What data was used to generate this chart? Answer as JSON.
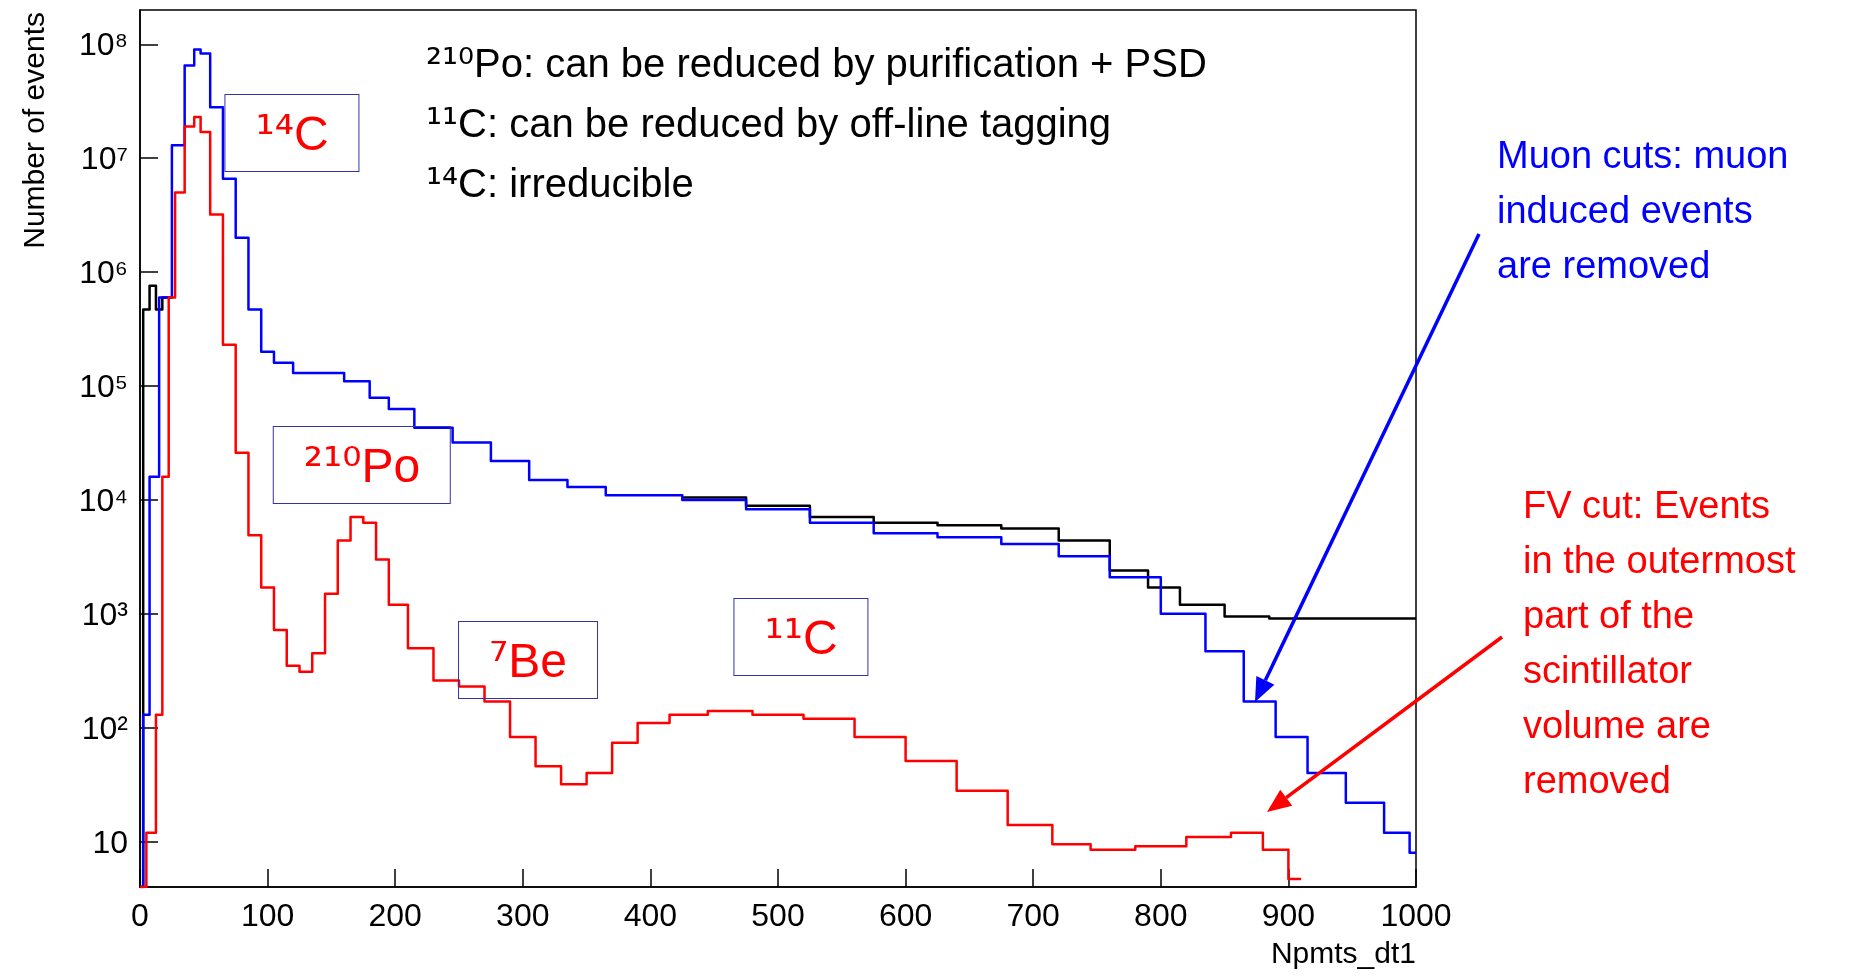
{
  "chart_data": {
    "type": "step",
    "xlabel": "Npmts_dt1",
    "ylabel": "Number of events",
    "xlim": [
      0,
      1000
    ],
    "xticks": [
      0,
      100,
      200,
      300,
      400,
      500,
      600,
      700,
      800,
      900,
      1000
    ],
    "ylim": [
      4,
      200000000
    ],
    "log": "y",
    "grid": false,
    "yticks": [
      10,
      {
        "value": 100,
        "label": "10²"
      },
      {
        "value": 1000,
        "label": "10³"
      },
      {
        "value": 10000,
        "label": "10⁴"
      },
      {
        "value": 100000,
        "label": "10⁵"
      },
      {
        "value": 1000000,
        "label": "10⁶"
      },
      {
        "value": 10000000,
        "label": "10⁷"
      },
      {
        "value": 100000000,
        "label": "10⁸"
      }
    ],
    "annotations": [
      "²¹⁰Po: can be reduced by purification + PSD",
      "¹¹C: can be reduced by off-line tagging",
      "¹⁴C: irreducible",
      "¹⁴C",
      "²¹⁰Po",
      "⁷Be",
      "¹¹C",
      "Muon cuts: muon induced events are removed",
      "FV cut: Events in the outermost part of the scintillator volume are removed"
    ],
    "series": [
      {
        "color": "#000000",
        "x": [
          0,
          5,
          10,
          15,
          20,
          30,
          40,
          45,
          50,
          60,
          70,
          80,
          90,
          100,
          110,
          130,
          150,
          170,
          190,
          200,
          230,
          260,
          290,
          320,
          350,
          380,
          400,
          450,
          500,
          550,
          600,
          650,
          700,
          740,
          780,
          800,
          830,
          870,
          900,
          950,
          1000
        ],
        "values": [
          4,
          470000,
          760000,
          470000,
          600000,
          null,
          null,
          null,
          null,
          null,
          null,
          null,
          null,
          null,
          null,
          null,
          null,
          null,
          null,
          null,
          null,
          null,
          null,
          null,
          null,
          null,
          null,
          10500,
          8900,
          7100,
          6300,
          6000,
          5600,
          4400,
          2400,
          1700,
          1200,
          950,
          910,
          910,
          910
        ]
      },
      {
        "color": "#0000ff",
        "x": [
          0,
          5,
          10,
          20,
          30,
          40,
          45,
          50,
          60,
          70,
          80,
          90,
          100,
          110,
          130,
          150,
          170,
          190,
          200,
          230,
          260,
          290,
          320,
          350,
          380,
          400,
          450,
          500,
          550,
          600,
          650,
          700,
          740,
          780,
          820,
          850,
          880,
          900,
          930,
          960,
          990,
          1000
        ],
        "values": [
          4,
          130,
          16000,
          600000,
          13000000,
          65000000,
          90000000,
          83000000,
          28000000,
          6600000,
          2000000,
          470000,
          200000,
          160000,
          130000,
          130000,
          110000,
          79000,
          63000,
          43000,
          32000,
          22000,
          15000,
          13000,
          11000,
          11000,
          10000,
          8300,
          6300,
          5100,
          4700,
          4100,
          3200,
          2100,
          1000,
          470,
          170,
          83,
          40,
          22,
          12,
          8
        ]
      },
      {
        "color": "#ff0000",
        "x": [
          0,
          10,
          15,
          20,
          25,
          30,
          40,
          45,
          50,
          60,
          70,
          80,
          90,
          100,
          110,
          120,
          130,
          140,
          150,
          160,
          170,
          180,
          190,
          200,
          220,
          240,
          260,
          280,
          300,
          320,
          340,
          360,
          380,
          400,
          430,
          460,
          500,
          540,
          580,
          620,
          660,
          700,
          730,
          760,
          800,
          840,
          870,
          890,
          910
        ],
        "values": [
          4,
          12,
          130,
          16000,
          600000,
          5000000,
          19000000,
          23000000,
          17000000,
          3200000,
          230000,
          26000,
          4900,
          1700,
          720,
          350,
          310,
          450,
          1500,
          4400,
          7100,
          6300,
          3000,
          1200,
          500,
          260,
          230,
          170,
          83,
          46,
          32,
          40,
          74,
          110,
          130,
          140,
          130,
          120,
          83,
          51,
          28,
          14,
          9.5,
          8.5,
          9.1,
          11,
          12,
          8.5,
          4.7
        ]
      }
    ]
  }
}
